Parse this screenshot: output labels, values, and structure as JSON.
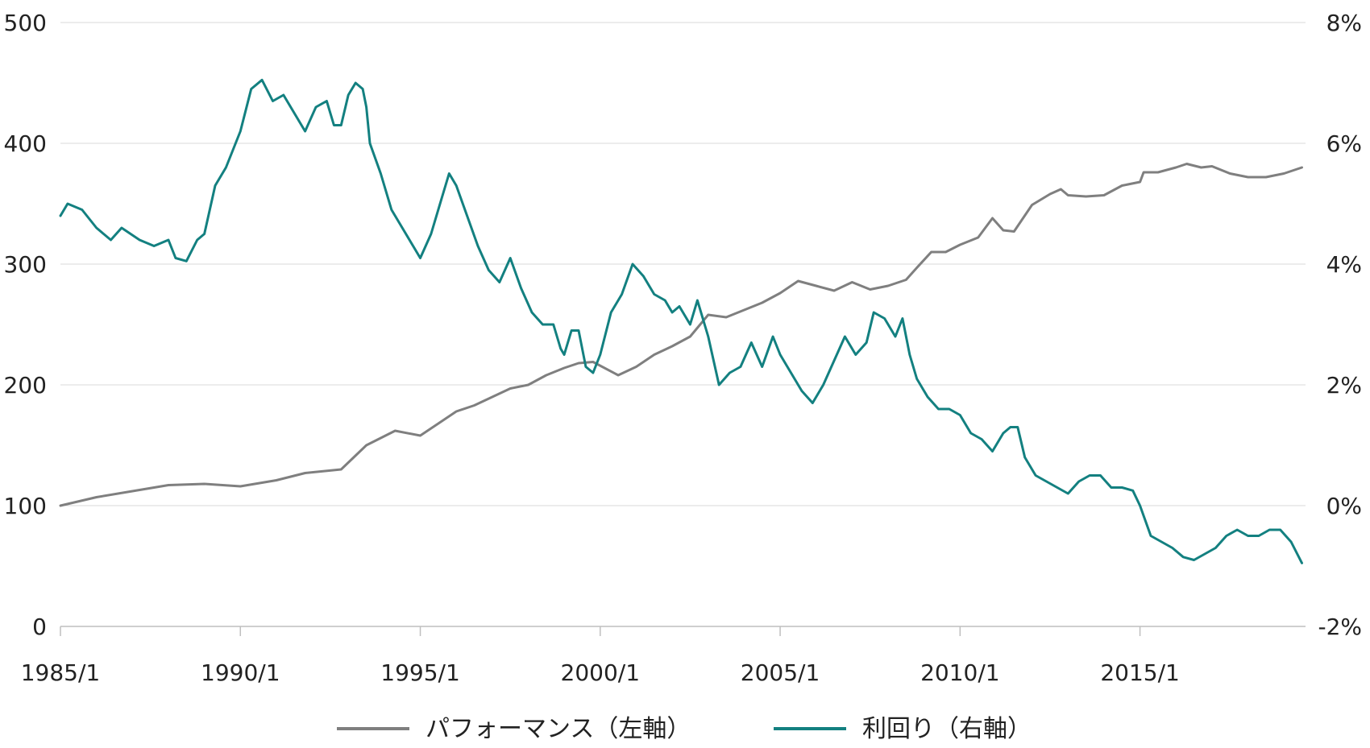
{
  "chart_data": {
    "type": "line",
    "title": "",
    "xlabel": "",
    "ylabel": "",
    "x_ticks": [
      "1985/1",
      "1990/1",
      "1995/1",
      "2000/1",
      "2005/1",
      "2010/1",
      "2015/1"
    ],
    "x_range": [
      1985.0,
      2019.6
    ],
    "y_left": {
      "range": [
        0,
        500
      ],
      "ticks": [
        "0",
        "100",
        "200",
        "300",
        "400",
        "500"
      ]
    },
    "y_right": {
      "range": [
        -2,
        8
      ],
      "ticks": [
        "-2%",
        "0%",
        "2%",
        "4%",
        "6%",
        "8%"
      ],
      "negative_color": "#b0322b"
    },
    "grid": "horizontal",
    "legend_position": "bottom-center",
    "series": [
      {
        "name": "パフォーマンス（左軸）",
        "axis": "left",
        "color": "#7f7f7f",
        "points": [
          [
            1985.0,
            100
          ],
          [
            1986.0,
            107
          ],
          [
            1987.0,
            112
          ],
          [
            1988.0,
            117
          ],
          [
            1989.0,
            118
          ],
          [
            1990.0,
            116
          ],
          [
            1991.0,
            121
          ],
          [
            1991.8,
            127
          ],
          [
            1992.8,
            130
          ],
          [
            1993.5,
            150
          ],
          [
            1994.3,
            162
          ],
          [
            1995.0,
            158
          ],
          [
            1995.5,
            168
          ],
          [
            1996.0,
            178
          ],
          [
            1996.5,
            183
          ],
          [
            1997.5,
            197
          ],
          [
            1998.0,
            200
          ],
          [
            1998.5,
            208
          ],
          [
            1999.0,
            214
          ],
          [
            1999.4,
            218
          ],
          [
            1999.8,
            219
          ],
          [
            2000.5,
            208
          ],
          [
            2001.0,
            215
          ],
          [
            2001.5,
            225
          ],
          [
            2002.0,
            232
          ],
          [
            2002.5,
            240
          ],
          [
            2003.0,
            258
          ],
          [
            2003.5,
            256
          ],
          [
            2004.0,
            262
          ],
          [
            2004.5,
            268
          ],
          [
            2005.0,
            276
          ],
          [
            2005.5,
            286
          ],
          [
            2006.0,
            282
          ],
          [
            2006.5,
            278
          ],
          [
            2007.0,
            285
          ],
          [
            2007.5,
            279
          ],
          [
            2008.0,
            282
          ],
          [
            2008.5,
            287
          ],
          [
            2008.8,
            297
          ],
          [
            2009.2,
            310
          ],
          [
            2009.6,
            310
          ],
          [
            2010.0,
            316
          ],
          [
            2010.5,
            322
          ],
          [
            2010.9,
            338
          ],
          [
            2011.2,
            328
          ],
          [
            2011.5,
            327
          ],
          [
            2012.0,
            349
          ],
          [
            2012.5,
            358
          ],
          [
            2012.8,
            362
          ],
          [
            2013.0,
            357
          ],
          [
            2013.5,
            356
          ],
          [
            2014.0,
            357
          ],
          [
            2014.5,
            365
          ],
          [
            2015.0,
            368
          ],
          [
            2015.1,
            376
          ],
          [
            2015.5,
            376
          ],
          [
            2016.0,
            380
          ],
          [
            2016.3,
            383
          ],
          [
            2016.7,
            380
          ],
          [
            2017.0,
            381
          ],
          [
            2017.5,
            375
          ],
          [
            2018.0,
            372
          ],
          [
            2018.5,
            372
          ],
          [
            2019.0,
            375
          ],
          [
            2019.5,
            380
          ]
        ]
      },
      {
        "name": "利回り（右軸）",
        "axis": "right",
        "color": "#138080",
        "points": [
          [
            1985.0,
            4.8
          ],
          [
            1985.2,
            5.0
          ],
          [
            1985.6,
            4.9
          ],
          [
            1986.0,
            4.6
          ],
          [
            1986.4,
            4.4
          ],
          [
            1986.7,
            4.6
          ],
          [
            1987.2,
            4.4
          ],
          [
            1987.6,
            4.3
          ],
          [
            1988.0,
            4.4
          ],
          [
            1988.2,
            4.1
          ],
          [
            1988.5,
            4.05
          ],
          [
            1988.8,
            4.4
          ],
          [
            1989.0,
            4.5
          ],
          [
            1989.3,
            5.3
          ],
          [
            1989.6,
            5.6
          ],
          [
            1990.0,
            6.2
          ],
          [
            1990.3,
            6.9
          ],
          [
            1990.6,
            7.05
          ],
          [
            1990.9,
            6.7
          ],
          [
            1991.2,
            6.8
          ],
          [
            1991.5,
            6.5
          ],
          [
            1991.8,
            6.2
          ],
          [
            1992.1,
            6.6
          ],
          [
            1992.4,
            6.7
          ],
          [
            1992.6,
            6.3
          ],
          [
            1992.8,
            6.3
          ],
          [
            1993.0,
            6.8
          ],
          [
            1993.2,
            7.0
          ],
          [
            1993.4,
            6.9
          ],
          [
            1993.5,
            6.6
          ],
          [
            1993.6,
            6.0
          ],
          [
            1993.9,
            5.5
          ],
          [
            1994.2,
            4.9
          ],
          [
            1994.5,
            4.6
          ],
          [
            1994.8,
            4.3
          ],
          [
            1995.0,
            4.1
          ],
          [
            1995.3,
            4.5
          ],
          [
            1995.6,
            5.1
          ],
          [
            1995.8,
            5.5
          ],
          [
            1996.0,
            5.3
          ],
          [
            1996.3,
            4.8
          ],
          [
            1996.6,
            4.3
          ],
          [
            1996.9,
            3.9
          ],
          [
            1997.2,
            3.7
          ],
          [
            1997.5,
            4.1
          ],
          [
            1997.8,
            3.6
          ],
          [
            1998.1,
            3.2
          ],
          [
            1998.4,
            3.0
          ],
          [
            1998.7,
            3.0
          ],
          [
            1998.9,
            2.6
          ],
          [
            1999.0,
            2.5
          ],
          [
            1999.2,
            2.9
          ],
          [
            1999.4,
            2.9
          ],
          [
            1999.6,
            2.3
          ],
          [
            1999.8,
            2.2
          ],
          [
            2000.0,
            2.5
          ],
          [
            2000.3,
            3.2
          ],
          [
            2000.6,
            3.5
          ],
          [
            2000.9,
            4.0
          ],
          [
            2001.2,
            3.8
          ],
          [
            2001.5,
            3.5
          ],
          [
            2001.8,
            3.4
          ],
          [
            2002.0,
            3.2
          ],
          [
            2002.2,
            3.3
          ],
          [
            2002.5,
            3.0
          ],
          [
            2002.7,
            3.4
          ],
          [
            2003.0,
            2.8
          ],
          [
            2003.3,
            2.0
          ],
          [
            2003.6,
            2.2
          ],
          [
            2003.9,
            2.3
          ],
          [
            2004.2,
            2.7
          ],
          [
            2004.5,
            2.3
          ],
          [
            2004.8,
            2.8
          ],
          [
            2005.0,
            2.5
          ],
          [
            2005.3,
            2.2
          ],
          [
            2005.6,
            1.9
          ],
          [
            2005.9,
            1.7
          ],
          [
            2006.2,
            2.0
          ],
          [
            2006.5,
            2.4
          ],
          [
            2006.8,
            2.8
          ],
          [
            2007.1,
            2.5
          ],
          [
            2007.4,
            2.7
          ],
          [
            2007.6,
            3.2
          ],
          [
            2007.9,
            3.1
          ],
          [
            2008.2,
            2.8
          ],
          [
            2008.4,
            3.1
          ],
          [
            2008.6,
            2.5
          ],
          [
            2008.8,
            2.1
          ],
          [
            2009.1,
            1.8
          ],
          [
            2009.4,
            1.6
          ],
          [
            2009.7,
            1.6
          ],
          [
            2010.0,
            1.5
          ],
          [
            2010.3,
            1.2
          ],
          [
            2010.6,
            1.1
          ],
          [
            2010.9,
            0.9
          ],
          [
            2011.2,
            1.2
          ],
          [
            2011.4,
            1.3
          ],
          [
            2011.6,
            1.3
          ],
          [
            2011.8,
            0.8
          ],
          [
            2012.1,
            0.5
          ],
          [
            2012.4,
            0.4
          ],
          [
            2012.7,
            0.3
          ],
          [
            2013.0,
            0.2
          ],
          [
            2013.3,
            0.4
          ],
          [
            2013.6,
            0.5
          ],
          [
            2013.9,
            0.5
          ],
          [
            2014.2,
            0.3
          ],
          [
            2014.5,
            0.3
          ],
          [
            2014.8,
            0.25
          ],
          [
            2015.0,
            0.0
          ],
          [
            2015.3,
            -0.5
          ],
          [
            2015.6,
            -0.6
          ],
          [
            2015.9,
            -0.7
          ],
          [
            2016.2,
            -0.85
          ],
          [
            2016.5,
            -0.9
          ],
          [
            2016.8,
            -0.8
          ],
          [
            2017.1,
            -0.7
          ],
          [
            2017.4,
            -0.5
          ],
          [
            2017.7,
            -0.4
          ],
          [
            2018.0,
            -0.5
          ],
          [
            2018.3,
            -0.5
          ],
          [
            2018.6,
            -0.4
          ],
          [
            2018.9,
            -0.4
          ],
          [
            2019.2,
            -0.6
          ],
          [
            2019.5,
            -0.95
          ]
        ]
      }
    ]
  }
}
